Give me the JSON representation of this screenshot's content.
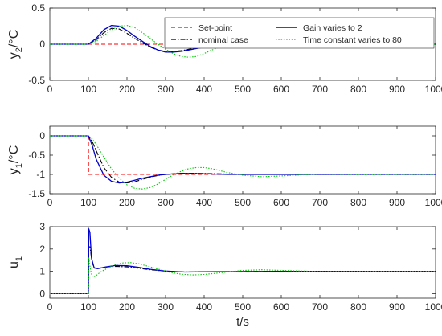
{
  "chart_data": [
    {
      "type": "line",
      "ylabel_main": "y",
      "ylabel_sub": "2",
      "ylabel_unit": "/°C",
      "xlabel": "",
      "xlim": [
        0,
        1000
      ],
      "ylim": [
        -0.5,
        0.5
      ],
      "xticks": [
        0,
        100,
        200,
        300,
        400,
        500,
        600,
        700,
        800,
        900,
        1000
      ],
      "yticks": [
        -0.5,
        0,
        0.5
      ],
      "ytick_labels": [
        "-0.5",
        "0",
        "0.5"
      ],
      "legend": "top-right",
      "series": [
        {
          "name": "Set-point",
          "color": "#ff0000",
          "dash": "dashed",
          "x": [
            0,
            1000
          ],
          "y": [
            0,
            0
          ]
        },
        {
          "name": "nominal case",
          "color": "#000000",
          "dash": "dashdot",
          "x": [
            0,
            100,
            120,
            140,
            160,
            180,
            200,
            220,
            240,
            260,
            280,
            300,
            320,
            340,
            360,
            380,
            400,
            450,
            500,
            550,
            600,
            700,
            800,
            1000
          ],
          "y": [
            0,
            0,
            0.06,
            0.16,
            0.22,
            0.21,
            0.15,
            0.08,
            0.02,
            -0.04,
            -0.08,
            -0.1,
            -0.1,
            -0.09,
            -0.07,
            -0.05,
            -0.04,
            -0.02,
            -0.01,
            0,
            0,
            0,
            0,
            0
          ]
        },
        {
          "name": "Gain varies to 2",
          "color": "#0000cc",
          "dash": "solid",
          "x": [
            0,
            100,
            120,
            140,
            160,
            180,
            200,
            220,
            240,
            260,
            280,
            300,
            320,
            340,
            360,
            380,
            400,
            450,
            500,
            550,
            600,
            700,
            800,
            1000
          ],
          "y": [
            0,
            0,
            0.08,
            0.2,
            0.26,
            0.25,
            0.19,
            0.11,
            0.04,
            -0.03,
            -0.08,
            -0.11,
            -0.11,
            -0.1,
            -0.08,
            -0.06,
            -0.04,
            -0.02,
            -0.01,
            0,
            0,
            0,
            0,
            0
          ]
        },
        {
          "name": "Time constant varies to 80",
          "color": "#00cc00",
          "dash": "dotted",
          "x": [
            0,
            100,
            120,
            140,
            160,
            180,
            200,
            220,
            240,
            260,
            280,
            300,
            320,
            340,
            360,
            380,
            400,
            420,
            450,
            500,
            550,
            600,
            650,
            700,
            800,
            1000
          ],
          "y": [
            0,
            0,
            0.04,
            0.12,
            0.2,
            0.25,
            0.26,
            0.23,
            0.16,
            0.08,
            0.0,
            -0.07,
            -0.13,
            -0.17,
            -0.18,
            -0.17,
            -0.13,
            -0.08,
            -0.02,
            0.03,
            0.04,
            0.03,
            0.01,
            0,
            0,
            0
          ]
        }
      ]
    },
    {
      "type": "line",
      "ylabel_main": "y",
      "ylabel_sub": "1",
      "ylabel_unit": "/°C",
      "xlabel": "",
      "xlim": [
        0,
        1000
      ],
      "ylim": [
        -1.5,
        0.25
      ],
      "xticks": [
        0,
        100,
        200,
        300,
        400,
        500,
        600,
        700,
        800,
        900,
        1000
      ],
      "yticks": [
        -1.5,
        -1,
        -0.5,
        0
      ],
      "ytick_labels": [
        "-1.5",
        "-1",
        "-0.5",
        "0"
      ],
      "series": [
        {
          "name": "Set-point",
          "color": "#ff0000",
          "dash": "dashed",
          "x": [
            0,
            100,
            100.5,
            1000
          ],
          "y": [
            0,
            0,
            -1,
            -1
          ]
        },
        {
          "name": "nominal case",
          "color": "#000000",
          "dash": "dashdot",
          "x": [
            0,
            100,
            110,
            120,
            140,
            160,
            180,
            200,
            220,
            240,
            260,
            280,
            300,
            340,
            380,
            420,
            460,
            500,
            600,
            700,
            1000
          ],
          "y": [
            0,
            0,
            -0.15,
            -0.38,
            -0.82,
            -1.08,
            -1.2,
            -1.22,
            -1.19,
            -1.13,
            -1.07,
            -1.03,
            -1.0,
            -0.97,
            -0.97,
            -0.98,
            -0.99,
            -1.0,
            -1.0,
            -1.0,
            -1.0
          ]
        },
        {
          "name": "Gain varies to 2",
          "color": "#0000cc",
          "dash": "solid",
          "x": [
            0,
            100,
            110,
            120,
            140,
            160,
            180,
            200,
            220,
            240,
            260,
            280,
            300,
            340,
            380,
            420,
            460,
            500,
            600,
            700,
            1000
          ],
          "y": [
            0,
            0,
            -0.25,
            -0.6,
            -1.02,
            -1.18,
            -1.22,
            -1.2,
            -1.15,
            -1.1,
            -1.06,
            -1.02,
            -1.0,
            -0.97,
            -0.98,
            -0.99,
            -1.0,
            -1.0,
            -1.0,
            -1.0,
            -1.0
          ]
        },
        {
          "name": "Time constant varies to 80",
          "color": "#00cc00",
          "dash": "dotted",
          "x": [
            0,
            100,
            110,
            120,
            140,
            160,
            180,
            200,
            220,
            240,
            260,
            280,
            300,
            320,
            340,
            360,
            380,
            400,
            420,
            440,
            460,
            500,
            550,
            600,
            700,
            800,
            1000
          ],
          "y": [
            0,
            0,
            -0.08,
            -0.22,
            -0.55,
            -0.86,
            -1.1,
            -1.27,
            -1.36,
            -1.38,
            -1.34,
            -1.25,
            -1.13,
            -1.01,
            -0.92,
            -0.85,
            -0.82,
            -0.82,
            -0.85,
            -0.9,
            -0.95,
            -1.02,
            -1.06,
            -1.04,
            -0.99,
            -1.0,
            -1.0
          ]
        }
      ]
    },
    {
      "type": "line",
      "ylabel_main": "u",
      "ylabel_sub": "1",
      "ylabel_unit": "",
      "xlabel": "t/s",
      "xlim": [
        0,
        1000
      ],
      "ylim": [
        -0.2,
        3
      ],
      "xticks": [
        0,
        100,
        200,
        300,
        400,
        500,
        600,
        700,
        800,
        900,
        1000
      ],
      "yticks": [
        0,
        1,
        2,
        3
      ],
      "ytick_labels": [
        "0",
        "1",
        "2",
        "3"
      ],
      "series": [
        {
          "name": "Set-point",
          "color": "#ff0000",
          "dash": "dashed",
          "x": [],
          "y": []
        },
        {
          "name": "nominal case",
          "color": "#000000",
          "dash": "dashdot",
          "x": [
            0,
            100,
            101,
            104,
            110,
            118,
            130,
            150,
            170,
            200,
            230,
            260,
            300,
            350,
            400,
            500,
            600,
            1000
          ],
          "y": [
            0,
            0,
            2.1,
            2.1,
            1.35,
            1.12,
            1.15,
            1.2,
            1.22,
            1.2,
            1.14,
            1.07,
            1.01,
            0.97,
            0.98,
            0.99,
            1.0,
            1.0
          ]
        },
        {
          "name": "Gain varies to 2",
          "color": "#0000cc",
          "dash": "solid",
          "x": [
            0,
            100,
            101,
            104,
            108,
            115,
            125,
            145,
            170,
            200,
            230,
            260,
            300,
            350,
            400,
            500,
            600,
            1000
          ],
          "y": [
            0,
            0,
            2.9,
            2.75,
            1.6,
            1.15,
            1.12,
            1.2,
            1.26,
            1.25,
            1.18,
            1.09,
            1.01,
            0.97,
            0.98,
            0.99,
            1.0,
            1.0
          ]
        },
        {
          "name": "Time constant varies to 80",
          "color": "#00cc00",
          "dash": "dotted",
          "x": [
            0,
            100,
            101,
            105,
            110,
            118,
            130,
            150,
            170,
            190,
            210,
            230,
            250,
            280,
            310,
            340,
            370,
            400,
            430,
            460,
            500,
            550,
            600,
            700,
            800,
            1000
          ],
          "y": [
            0,
            0,
            1.6,
            1.1,
            0.75,
            0.78,
            0.95,
            1.15,
            1.3,
            1.38,
            1.39,
            1.34,
            1.25,
            1.1,
            0.96,
            0.87,
            0.84,
            0.86,
            0.91,
            0.97,
            1.04,
            1.07,
            1.04,
            0.99,
            1.0,
            1.0
          ]
        }
      ]
    }
  ]
}
